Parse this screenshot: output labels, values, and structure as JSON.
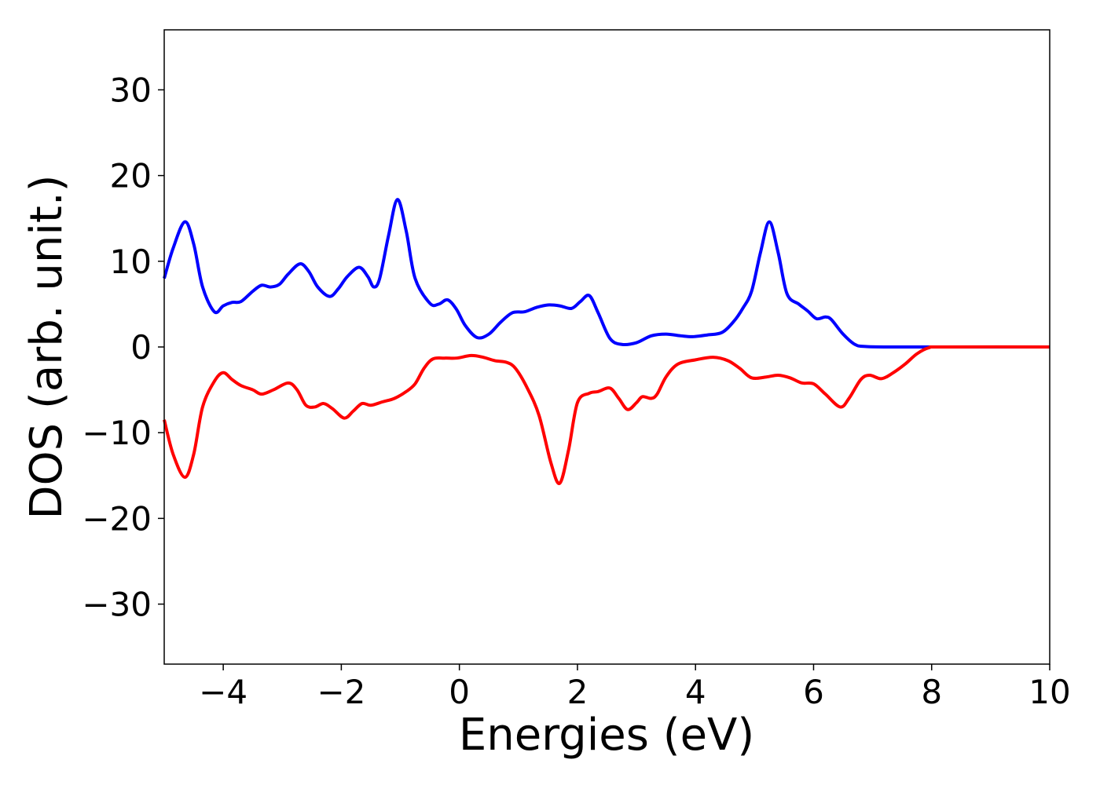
{
  "chart_data": {
    "type": "line",
    "title": "",
    "xlabel": "Energies (eV)",
    "ylabel": "DOS (arb. unit.)",
    "xlim": [
      -5,
      10
    ],
    "ylim": [
      -37,
      37
    ],
    "xticks": [
      -4,
      -2,
      0,
      2,
      4,
      6,
      8,
      10
    ],
    "xtick_labels": [
      "−4",
      "−2",
      "0",
      "2",
      "4",
      "6",
      "8",
      "10"
    ],
    "yticks": [
      -30,
      -20,
      -10,
      0,
      10,
      20,
      30
    ],
    "ytick_labels": [
      "−30",
      "−20",
      "−10",
      "0",
      "10",
      "20",
      "30"
    ],
    "grid": false,
    "legend": "none",
    "series": [
      {
        "color": "#0000ff",
        "points": [
          [
            -5.0,
            8.0
          ],
          [
            -4.85,
            11.5
          ],
          [
            -4.65,
            14.6
          ],
          [
            -4.5,
            12.0
          ],
          [
            -4.35,
            7.0
          ],
          [
            -4.15,
            4.1
          ],
          [
            -4.0,
            4.8
          ],
          [
            -3.85,
            5.2
          ],
          [
            -3.7,
            5.3
          ],
          [
            -3.5,
            6.5
          ],
          [
            -3.35,
            7.2
          ],
          [
            -3.2,
            7.0
          ],
          [
            -3.05,
            7.3
          ],
          [
            -2.9,
            8.5
          ],
          [
            -2.7,
            9.7
          ],
          [
            -2.55,
            8.8
          ],
          [
            -2.4,
            7.0
          ],
          [
            -2.2,
            5.9
          ],
          [
            -2.05,
            6.8
          ],
          [
            -1.9,
            8.2
          ],
          [
            -1.7,
            9.3
          ],
          [
            -1.55,
            8.2
          ],
          [
            -1.45,
            7.0
          ],
          [
            -1.35,
            8.0
          ],
          [
            -1.2,
            13.0
          ],
          [
            -1.05,
            17.2
          ],
          [
            -0.9,
            13.5
          ],
          [
            -0.75,
            8.0
          ],
          [
            -0.5,
            5.1
          ],
          [
            -0.35,
            5.0
          ],
          [
            -0.2,
            5.5
          ],
          [
            -0.05,
            4.4
          ],
          [
            0.1,
            2.5
          ],
          [
            0.3,
            1.1
          ],
          [
            0.5,
            1.5
          ],
          [
            0.7,
            2.9
          ],
          [
            0.9,
            4.0
          ],
          [
            1.1,
            4.1
          ],
          [
            1.3,
            4.6
          ],
          [
            1.5,
            4.9
          ],
          [
            1.7,
            4.8
          ],
          [
            1.9,
            4.5
          ],
          [
            2.05,
            5.3
          ],
          [
            2.2,
            6.0
          ],
          [
            2.35,
            4.0
          ],
          [
            2.55,
            1.0
          ],
          [
            2.75,
            0.3
          ],
          [
            3.0,
            0.5
          ],
          [
            3.25,
            1.3
          ],
          [
            3.5,
            1.5
          ],
          [
            3.75,
            1.3
          ],
          [
            3.95,
            1.2
          ],
          [
            4.2,
            1.4
          ],
          [
            4.45,
            1.7
          ],
          [
            4.65,
            3.0
          ],
          [
            4.8,
            4.5
          ],
          [
            4.95,
            6.5
          ],
          [
            5.1,
            11.0
          ],
          [
            5.25,
            14.6
          ],
          [
            5.4,
            11.0
          ],
          [
            5.55,
            6.2
          ],
          [
            5.75,
            5.0
          ],
          [
            5.9,
            4.2
          ],
          [
            6.05,
            3.3
          ],
          [
            6.2,
            3.5
          ],
          [
            6.3,
            3.2
          ],
          [
            6.5,
            1.5
          ],
          [
            6.7,
            0.3
          ],
          [
            6.9,
            0.05
          ],
          [
            7.5,
            0.0
          ],
          [
            8.0,
            0.0
          ],
          [
            10.0,
            0.0
          ]
        ]
      },
      {
        "color": "#ff0000",
        "points": [
          [
            -5.0,
            -8.5
          ],
          [
            -4.85,
            -12.5
          ],
          [
            -4.65,
            -15.2
          ],
          [
            -4.5,
            -12.5
          ],
          [
            -4.35,
            -7.0
          ],
          [
            -4.15,
            -4.0
          ],
          [
            -4.0,
            -3.0
          ],
          [
            -3.85,
            -3.8
          ],
          [
            -3.7,
            -4.5
          ],
          [
            -3.5,
            -5.0
          ],
          [
            -3.35,
            -5.5
          ],
          [
            -3.15,
            -5.0
          ],
          [
            -2.9,
            -4.2
          ],
          [
            -2.75,
            -5.0
          ],
          [
            -2.6,
            -6.8
          ],
          [
            -2.45,
            -7.0
          ],
          [
            -2.3,
            -6.6
          ],
          [
            -2.15,
            -7.2
          ],
          [
            -1.95,
            -8.3
          ],
          [
            -1.8,
            -7.5
          ],
          [
            -1.65,
            -6.6
          ],
          [
            -1.5,
            -6.8
          ],
          [
            -1.3,
            -6.4
          ],
          [
            -1.1,
            -6.0
          ],
          [
            -0.9,
            -5.2
          ],
          [
            -0.75,
            -4.3
          ],
          [
            -0.6,
            -2.5
          ],
          [
            -0.45,
            -1.4
          ],
          [
            -0.25,
            -1.3
          ],
          [
            -0.05,
            -1.3
          ],
          [
            0.2,
            -1.0
          ],
          [
            0.4,
            -1.2
          ],
          [
            0.6,
            -1.6
          ],
          [
            0.8,
            -1.8
          ],
          [
            0.95,
            -2.5
          ],
          [
            1.15,
            -4.8
          ],
          [
            1.35,
            -8.0
          ],
          [
            1.55,
            -13.5
          ],
          [
            1.7,
            -15.9
          ],
          [
            1.85,
            -12.0
          ],
          [
            2.0,
            -6.5
          ],
          [
            2.2,
            -5.4
          ],
          [
            2.35,
            -5.2
          ],
          [
            2.55,
            -4.8
          ],
          [
            2.7,
            -6.0
          ],
          [
            2.85,
            -7.3
          ],
          [
            3.0,
            -6.5
          ],
          [
            3.1,
            -5.8
          ],
          [
            3.25,
            -6.0
          ],
          [
            3.35,
            -5.5
          ],
          [
            3.5,
            -3.5
          ],
          [
            3.7,
            -2.0
          ],
          [
            4.0,
            -1.5
          ],
          [
            4.3,
            -1.2
          ],
          [
            4.55,
            -1.6
          ],
          [
            4.75,
            -2.5
          ],
          [
            4.95,
            -3.6
          ],
          [
            5.2,
            -3.5
          ],
          [
            5.4,
            -3.3
          ],
          [
            5.6,
            -3.6
          ],
          [
            5.8,
            -4.2
          ],
          [
            6.0,
            -4.3
          ],
          [
            6.2,
            -5.5
          ],
          [
            6.45,
            -7.0
          ],
          [
            6.6,
            -6.0
          ],
          [
            6.8,
            -3.8
          ],
          [
            6.95,
            -3.3
          ],
          [
            7.15,
            -3.7
          ],
          [
            7.35,
            -3.0
          ],
          [
            7.55,
            -2.0
          ],
          [
            7.75,
            -0.8
          ],
          [
            7.95,
            -0.1
          ],
          [
            8.2,
            0.0
          ],
          [
            10.0,
            0.0
          ]
        ]
      }
    ]
  }
}
